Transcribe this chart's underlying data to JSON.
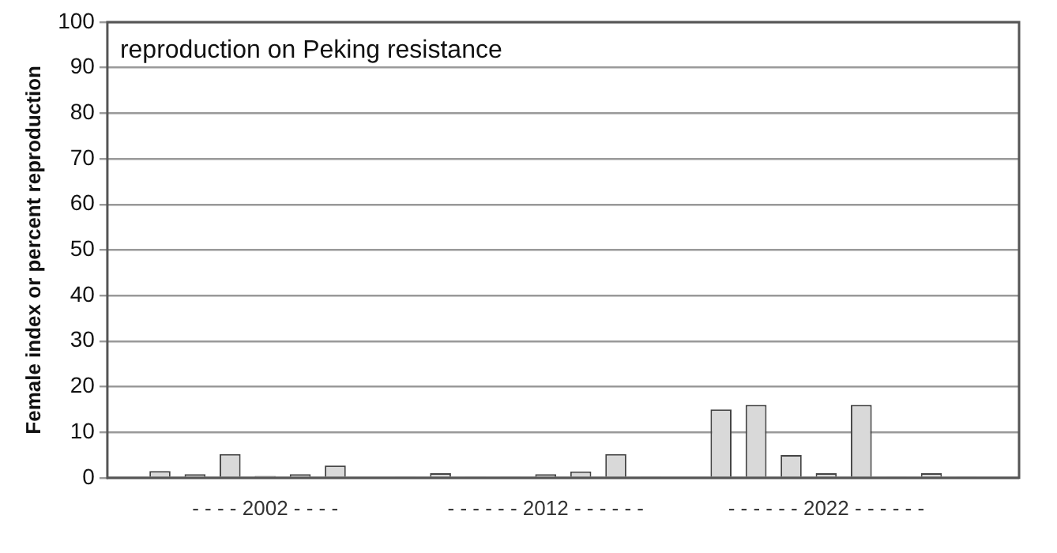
{
  "chart_data": {
    "type": "bar",
    "title": "reproduction on Peking resistance",
    "ylabel": "Female index or percent reproduction",
    "categories": [
      null,
      null,
      null,
      null,
      "- - - - 2002 - - - -",
      null,
      null,
      null,
      null,
      null,
      null,
      null,
      "- - - - - - 2012 - - - - - -",
      null,
      null,
      null,
      null,
      null,
      null,
      null,
      "- - - - - - 2022 - - - - - -",
      null,
      null,
      null,
      null,
      null
    ],
    "values": [
      null,
      1.5,
      0.8,
      5.2,
      0.4,
      0.8,
      2.7,
      null,
      0.2,
      1.0,
      0.2,
      0.2,
      0.8,
      1.4,
      5.2,
      0.2,
      null,
      15,
      16,
      5,
      1,
      16,
      0.2,
      1,
      0.2,
      null
    ],
    "color": "#d9d9d9",
    "ylim": [
      0,
      100
    ],
    "yticks": [
      0,
      10,
      20,
      30,
      40,
      50,
      60,
      70,
      80,
      90,
      100
    ],
    "grid": "y",
    "legend": false
  }
}
